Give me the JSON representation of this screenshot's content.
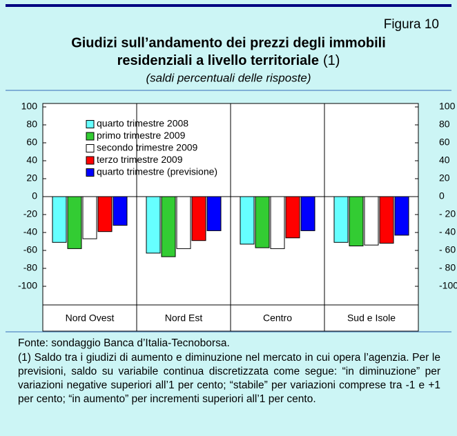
{
  "figure_label": "Figura 10",
  "chart_data": {
    "type": "bar",
    "title": [
      "Giudizi sull’andamento dei prezzi degli immobili",
      "residenziali a livello territoriale"
    ],
    "title_note": "(1)",
    "subtitle": "(saldi percentuali delle risposte)",
    "categories": [
      "Nord Ovest",
      "Nord Est",
      "Centro",
      "Sud e Isole"
    ],
    "series": [
      {
        "name": "quarto trimestre 2008",
        "color": "#66ffff",
        "values": [
          -51,
          -63,
          -53,
          -51
        ]
      },
      {
        "name": "primo trimestre 2009",
        "color": "#33cc33",
        "values": [
          -58,
          -67,
          -57,
          -55
        ]
      },
      {
        "name": "secondo trimestre 2009",
        "color": "#ffffff",
        "values": [
          -47,
          -58,
          -58,
          -54
        ]
      },
      {
        "name": "terzo trimestre 2009",
        "color": "#ff0000",
        "values": [
          -39,
          -49,
          -46,
          -52
        ]
      },
      {
        "name": "quarto trimestre (previsione)",
        "color": "#0000ff",
        "values": [
          -32,
          -38,
          -38,
          -43
        ]
      }
    ],
    "ylim": [
      -100,
      100
    ],
    "yticks": [
      100,
      80,
      60,
      40,
      20,
      0,
      -20,
      -40,
      -60,
      -80,
      -100
    ],
    "y2lim": [
      -100,
      100
    ],
    "y2ticks": [
      100,
      80,
      60,
      40,
      20,
      0,
      {
        "value": -20,
        "label": "- 20"
      },
      {
        "value": -40,
        "label": "- 40"
      },
      {
        "value": -60,
        "label": "- 60"
      },
      {
        "value": -80,
        "label": "- 80"
      },
      -100
    ],
    "legend": "upper left"
  },
  "notes": {
    "source": "Fonte: sondaggio Banca d’Italia-Tecnoborsa.",
    "footnote": "(1) Saldo tra i giudizi di aumento e diminuzione nel mercato in cui opera l’agenzia.  Per le previsioni, saldo su variabile continua discretizzata come segue: “in diminuzione” per variazioni negative superiori all’1 per cento; “stabile” per variazioni comprese tra -1 e +1 per cento; “in aumento” per incrementi superiori all’1 per cento."
  }
}
